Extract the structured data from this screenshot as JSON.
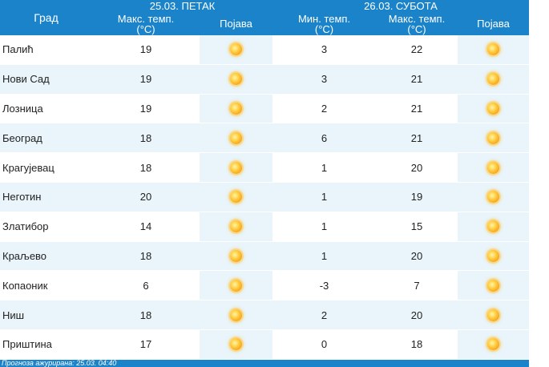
{
  "table": {
    "days": [
      {
        "label": "25.03. ПЕТАК"
      },
      {
        "label": "26.03. СУБОТА"
      }
    ],
    "columns": {
      "city": "Град",
      "max_temp_1": "Макс. темп.\n(°C)",
      "phenomenon_1": "Појава",
      "min_temp_2": "Мин. темп.\n(°C)",
      "max_temp_2": "Макс. темп.\n(°C)",
      "phenomenon_2": "Појава"
    },
    "rows": [
      {
        "city": "Палић",
        "max1": "19",
        "icon1": "sun-icon",
        "min2": "3",
        "max2": "22",
        "icon2": "sun-icon"
      },
      {
        "city": "Нови Сад",
        "max1": "19",
        "icon1": "sun-icon",
        "min2": "3",
        "max2": "21",
        "icon2": "sun-icon"
      },
      {
        "city": "Лозница",
        "max1": "19",
        "icon1": "sun-icon",
        "min2": "2",
        "max2": "21",
        "icon2": "sun-icon"
      },
      {
        "city": "Београд",
        "max1": "18",
        "icon1": "sun-icon",
        "min2": "6",
        "max2": "21",
        "icon2": "sun-icon"
      },
      {
        "city": "Крагујевац",
        "max1": "18",
        "icon1": "sun-icon",
        "min2": "1",
        "max2": "20",
        "icon2": "sun-icon"
      },
      {
        "city": "Неготин",
        "max1": "20",
        "icon1": "sun-icon",
        "min2": "1",
        "max2": "19",
        "icon2": "sun-icon"
      },
      {
        "city": "Златибор",
        "max1": "14",
        "icon1": "sun-icon",
        "min2": "1",
        "max2": "15",
        "icon2": "sun-icon"
      },
      {
        "city": "Краљево",
        "max1": "18",
        "icon1": "sun-icon",
        "min2": "1",
        "max2": "20",
        "icon2": "sun-icon"
      },
      {
        "city": "Копаоник",
        "max1": "6",
        "icon1": "sun-icon",
        "min2": "-3",
        "max2": "7",
        "icon2": "sun-icon"
      },
      {
        "city": "Ниш",
        "max1": "18",
        "icon1": "sun-icon",
        "min2": "2",
        "max2": "20",
        "icon2": "sun-icon"
      },
      {
        "city": "Приштина",
        "max1": "17",
        "icon1": "sun-icon",
        "min2": "0",
        "max2": "18",
        "icon2": "sun-icon"
      }
    ]
  },
  "footer": {
    "updated": "Прогноза ажурирана:  25.03. 04:40"
  },
  "colors": {
    "header_bg": "#1b83c9",
    "alt_row_bg": "#e9f5fb",
    "sun": "#f7a21a"
  }
}
